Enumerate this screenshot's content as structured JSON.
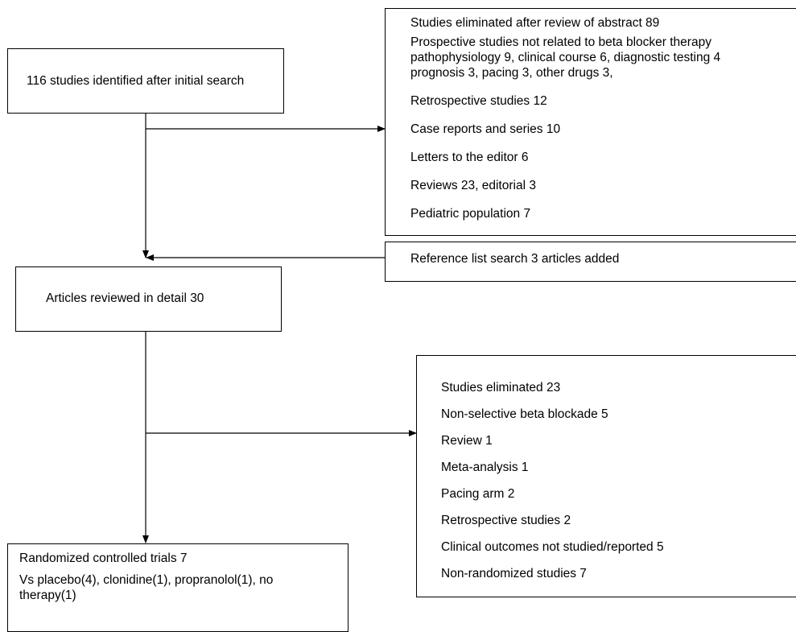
{
  "boxes": {
    "initial_search": {
      "text": "116 studies identified after initial search"
    },
    "abstract_elimination": {
      "lines": [
        "Studies eliminated after review of abstract 89",
        "Prospective studies not related to beta blocker therapy",
        "pathophysiology 9, clinical course 6, diagnostic testing 4",
        "prognosis 3, pacing 3, other drugs 3,",
        "Retrospective studies 12",
        "Case reports and series 10",
        "Letters to the editor 6",
        "Reviews 23, editorial 3",
        "Pediatric population 7"
      ]
    },
    "reference_search": {
      "text": "Reference list search 3 articles added"
    },
    "detailed_review": {
      "text": "Articles reviewed in detail 30"
    },
    "detail_elimination": {
      "lines": [
        "Studies eliminated 23",
        "Non-selective beta blockade 5",
        "Review 1",
        "Meta-analysis 1",
        "Pacing arm 2",
        "Retrospective studies 2",
        "Clinical outcomes not studied/reported 5",
        "Non-randomized studies 7"
      ]
    },
    "rct": {
      "lines": [
        "Randomized controlled trials 7",
        "Vs placebo(4), clonidine(1), propranolol(1), no",
        "therapy(1)"
      ]
    }
  }
}
